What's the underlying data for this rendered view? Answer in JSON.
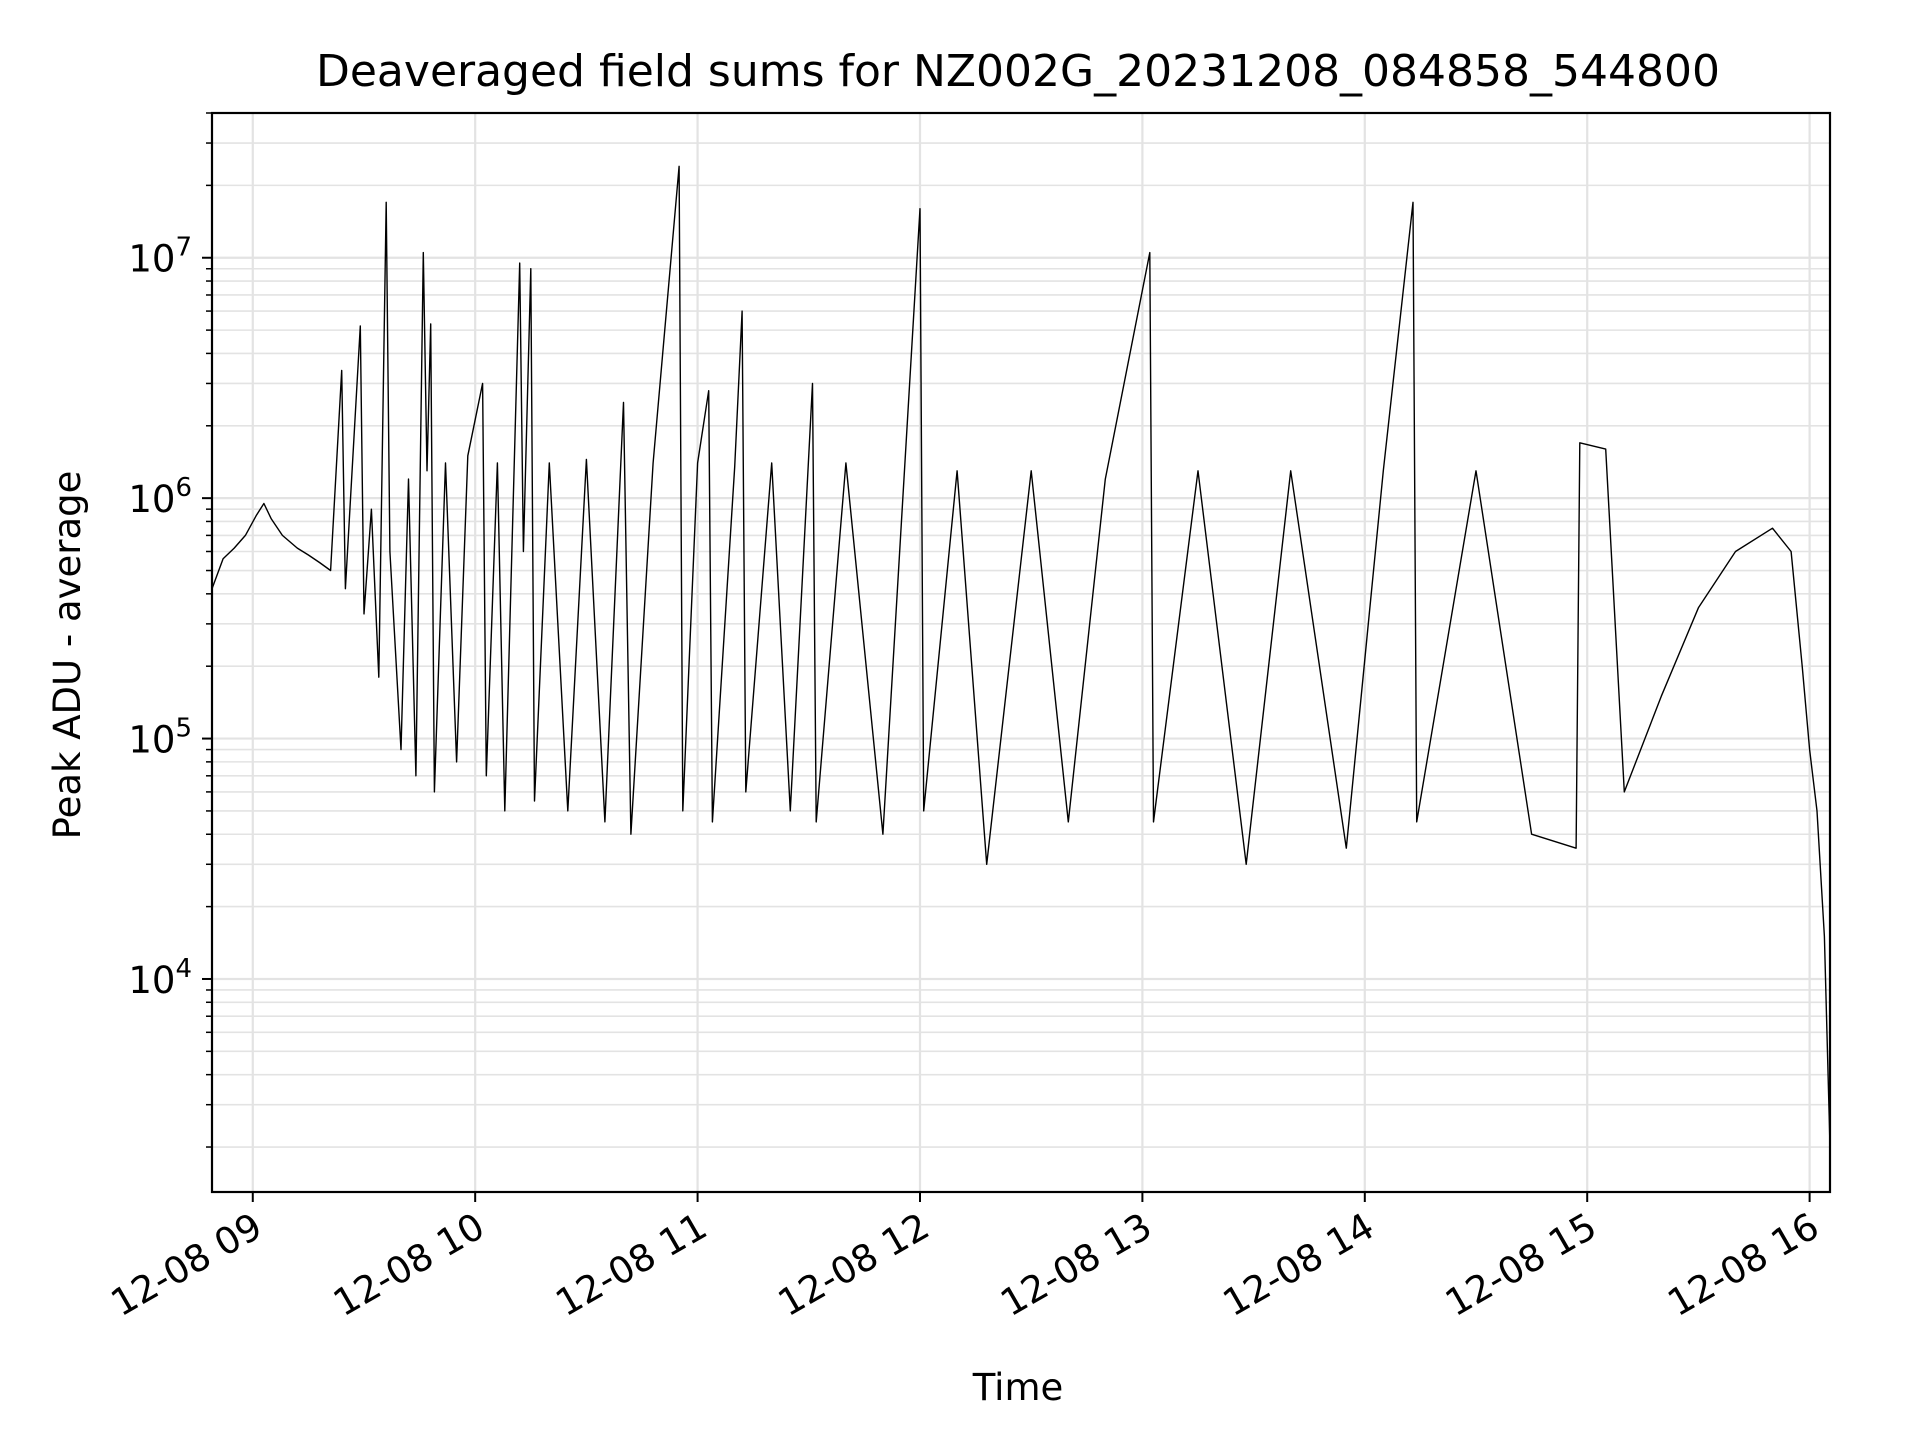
{
  "chart_data": {
    "type": "line",
    "title": "Deaveraged field sums for NZ002G_20231208_084858_544800",
    "xlabel": "Time",
    "ylabel": "Peak ADU - average",
    "yscale": "log",
    "ylim": [
      1300,
      40000000
    ],
    "xlim": [
      "2023-12-08 08:49:00",
      "2023-12-08 16:05:30"
    ],
    "x_ticks": [
      {
        "t": "2023-12-08 09:00",
        "label": "12-08 09"
      },
      {
        "t": "2023-12-08 10:00",
        "label": "12-08 10"
      },
      {
        "t": "2023-12-08 11:00",
        "label": "12-08 11"
      },
      {
        "t": "2023-12-08 12:00",
        "label": "12-08 12"
      },
      {
        "t": "2023-12-08 13:00",
        "label": "12-08 13"
      },
      {
        "t": "2023-12-08 14:00",
        "label": "12-08 14"
      },
      {
        "t": "2023-12-08 15:00",
        "label": "12-08 15"
      },
      {
        "t": "2023-12-08 16:00",
        "label": "12-08 16"
      }
    ],
    "y_ticks": [
      {
        "value": 10000,
        "base": "10",
        "exp": "4"
      },
      {
        "value": 100000,
        "base": "10",
        "exp": "5"
      },
      {
        "value": 1000000,
        "base": "10",
        "exp": "6"
      },
      {
        "value": 10000000,
        "base": "10",
        "exp": "7"
      }
    ],
    "grid": true,
    "line_color": "#000000",
    "grid_color": "#e3e3e3",
    "series": [
      {
        "color": "#000000",
        "points": [
          [
            "2023-12-08 08:49:00",
            420000
          ],
          [
            "2023-12-08 08:52:00",
            560000
          ],
          [
            "2023-12-08 08:55:00",
            620000
          ],
          [
            "2023-12-08 08:58:00",
            700000
          ],
          [
            "2023-12-08 09:01:00",
            850000
          ],
          [
            "2023-12-08 09:03:00",
            950000
          ],
          [
            "2023-12-08 09:05:00",
            820000
          ],
          [
            "2023-12-08 09:08:00",
            700000
          ],
          [
            "2023-12-08 09:12:00",
            620000
          ],
          [
            "2023-12-08 09:15:00",
            580000
          ],
          [
            "2023-12-08 09:18:00",
            540000
          ],
          [
            "2023-12-08 09:21:00",
            500000
          ],
          [
            "2023-12-08 09:24:00",
            3400000
          ],
          [
            "2023-12-08 09:25:00",
            420000
          ],
          [
            "2023-12-08 09:29:00",
            5200000
          ],
          [
            "2023-12-08 09:30:00",
            330000
          ],
          [
            "2023-12-08 09:32:00",
            900000
          ],
          [
            "2023-12-08 09:34:00",
            180000
          ],
          [
            "2023-12-08 09:36:00",
            17000000
          ],
          [
            "2023-12-08 09:37:00",
            600000
          ],
          [
            "2023-12-08 09:40:00",
            90000
          ],
          [
            "2023-12-08 09:42:00",
            1200000
          ],
          [
            "2023-12-08 09:44:00",
            70000
          ],
          [
            "2023-12-08 09:46:00",
            10500000
          ],
          [
            "2023-12-08 09:47:00",
            1300000
          ],
          [
            "2023-12-08 09:48:00",
            5300000
          ],
          [
            "2023-12-08 09:49:00",
            60000
          ],
          [
            "2023-12-08 09:52:00",
            1400000
          ],
          [
            "2023-12-08 09:55:00",
            80000
          ],
          [
            "2023-12-08 09:58:00",
            1500000
          ],
          [
            "2023-12-08 10:02:00",
            3000000
          ],
          [
            "2023-12-08 10:03:00",
            70000
          ],
          [
            "2023-12-08 10:06:00",
            1400000
          ],
          [
            "2023-12-08 10:08:00",
            50000
          ],
          [
            "2023-12-08 10:12:00",
            9500000
          ],
          [
            "2023-12-08 10:13:00",
            600000
          ],
          [
            "2023-12-08 10:15:00",
            9000000
          ],
          [
            "2023-12-08 10:16:00",
            55000
          ],
          [
            "2023-12-08 10:20:00",
            1400000
          ],
          [
            "2023-12-08 10:25:00",
            50000
          ],
          [
            "2023-12-08 10:30:00",
            1450000
          ],
          [
            "2023-12-08 10:35:00",
            45000
          ],
          [
            "2023-12-08 10:40:00",
            2500000
          ],
          [
            "2023-12-08 10:42:00",
            40000
          ],
          [
            "2023-12-08 10:48:00",
            1400000
          ],
          [
            "2023-12-08 10:55:00",
            24000000
          ],
          [
            "2023-12-08 10:56:00",
            50000
          ],
          [
            "2023-12-08 11:00:00",
            1400000
          ],
          [
            "2023-12-08 11:03:00",
            2800000
          ],
          [
            "2023-12-08 11:04:00",
            45000
          ],
          [
            "2023-12-08 11:10:00",
            1350000
          ],
          [
            "2023-12-08 11:12:00",
            6000000
          ],
          [
            "2023-12-08 11:13:00",
            60000
          ],
          [
            "2023-12-08 11:20:00",
            1400000
          ],
          [
            "2023-12-08 11:25:00",
            50000
          ],
          [
            "2023-12-08 11:31:00",
            3000000
          ],
          [
            "2023-12-08 11:32:00",
            45000
          ],
          [
            "2023-12-08 11:40:00",
            1400000
          ],
          [
            "2023-12-08 11:50:00",
            40000
          ],
          [
            "2023-12-08 12:00:00",
            16000000
          ],
          [
            "2023-12-08 12:01:00",
            50000
          ],
          [
            "2023-12-08 12:10:00",
            1300000
          ],
          [
            "2023-12-08 12:18:00",
            30000
          ],
          [
            "2023-12-08 12:30:00",
            1300000
          ],
          [
            "2023-12-08 12:40:00",
            45000
          ],
          [
            "2023-12-08 12:50:00",
            1200000
          ],
          [
            "2023-12-08 13:02:00",
            10500000
          ],
          [
            "2023-12-08 13:03:00",
            45000
          ],
          [
            "2023-12-08 13:15:00",
            1300000
          ],
          [
            "2023-12-08 13:28:00",
            30000
          ],
          [
            "2023-12-08 13:40:00",
            1300000
          ],
          [
            "2023-12-08 13:55:00",
            35000
          ],
          [
            "2023-12-08 14:05:00",
            1300000
          ],
          [
            "2023-12-08 14:13:00",
            17000000
          ],
          [
            "2023-12-08 14:14:00",
            45000
          ],
          [
            "2023-12-08 14:30:00",
            1300000
          ],
          [
            "2023-12-08 14:45:00",
            40000
          ],
          [
            "2023-12-08 14:57:00",
            35000
          ],
          [
            "2023-12-08 14:58:00",
            1700000
          ],
          [
            "2023-12-08 15:05:00",
            1600000
          ],
          [
            "2023-12-08 15:10:00",
            60000
          ],
          [
            "2023-12-08 15:20:00",
            150000
          ],
          [
            "2023-12-08 15:30:00",
            350000
          ],
          [
            "2023-12-08 15:40:00",
            600000
          ],
          [
            "2023-12-08 15:50:00",
            750000
          ],
          [
            "2023-12-08 15:55:00",
            600000
          ],
          [
            "2023-12-08 15:58:00",
            200000
          ],
          [
            "2023-12-08 16:00:00",
            90000
          ],
          [
            "2023-12-08 16:02:00",
            50000
          ],
          [
            "2023-12-08 16:04:00",
            15000
          ],
          [
            "2023-12-08 16:05:30",
            2000
          ]
        ]
      }
    ]
  }
}
